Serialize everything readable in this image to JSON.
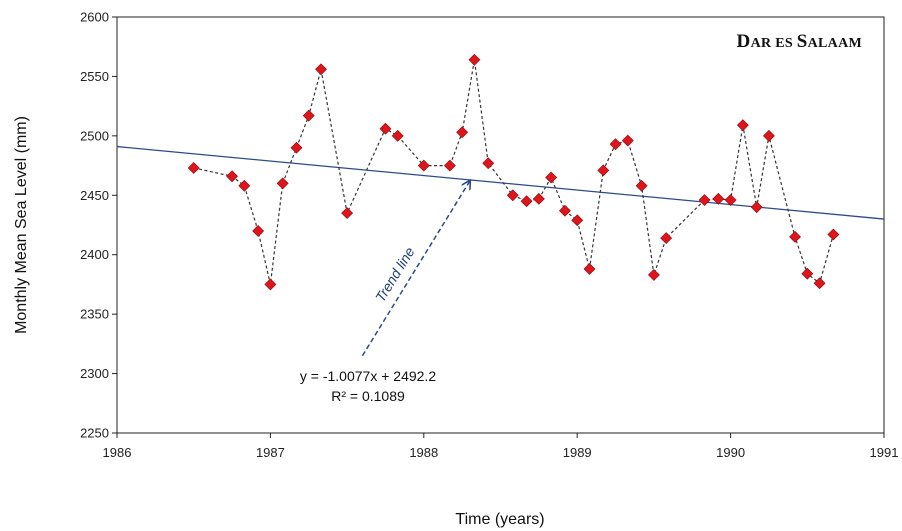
{
  "chart_data": {
    "type": "scatter",
    "title": "Dar es Salaam",
    "title_parts": {
      "first": "D",
      "second": "AR ES ",
      "third": "S",
      "fourth": "ALAAM"
    },
    "xlabel": "Time (years)",
    "ylabel": "Monthly Mean Sea Level (mm)",
    "xlim": [
      1986,
      1991
    ],
    "ylim": [
      2250,
      2600
    ],
    "x_ticks": [
      "1986",
      "1987",
      "1988",
      "1989",
      "1990",
      "1991"
    ],
    "y_ticks": [
      "2250",
      "2300",
      "2350",
      "2400",
      "2450",
      "2500",
      "2550",
      "2600"
    ],
    "grid": false,
    "marker_color": "#e0141b",
    "line_color": "#333333",
    "trend_color": "#2b4a8c",
    "series": [
      {
        "points": [
          {
            "x": 1986.5,
            "y": 2473
          },
          {
            "x": 1986.75,
            "y": 2466
          },
          {
            "x": 1986.83,
            "y": 2458
          },
          {
            "x": 1986.92,
            "y": 2420
          },
          {
            "x": 1987.0,
            "y": 2375
          },
          {
            "x": 1987.08,
            "y": 2460
          },
          {
            "x": 1987.17,
            "y": 2490
          },
          {
            "x": 1987.25,
            "y": 2517
          },
          {
            "x": 1987.33,
            "y": 2556
          },
          {
            "x": 1987.5,
            "y": 2435
          },
          {
            "x": 1987.75,
            "y": 2506
          },
          {
            "x": 1987.83,
            "y": 2500
          },
          {
            "x": 1988.0,
            "y": 2475
          },
          {
            "x": 1988.17,
            "y": 2475
          },
          {
            "x": 1988.25,
            "y": 2503
          },
          {
            "x": 1988.33,
            "y": 2564
          },
          {
            "x": 1988.42,
            "y": 2477
          },
          {
            "x": 1988.58,
            "y": 2450
          },
          {
            "x": 1988.67,
            "y": 2445
          },
          {
            "x": 1988.75,
            "y": 2447
          },
          {
            "x": 1988.83,
            "y": 2465
          },
          {
            "x": 1988.92,
            "y": 2437
          },
          {
            "x": 1989.0,
            "y": 2429
          },
          {
            "x": 1989.08,
            "y": 2388
          },
          {
            "x": 1989.17,
            "y": 2471
          },
          {
            "x": 1989.25,
            "y": 2493
          },
          {
            "x": 1989.33,
            "y": 2496
          },
          {
            "x": 1989.42,
            "y": 2458
          },
          {
            "x": 1989.5,
            "y": 2383
          },
          {
            "x": 1989.58,
            "y": 2414
          },
          {
            "x": 1989.83,
            "y": 2446
          },
          {
            "x": 1989.92,
            "y": 2447
          },
          {
            "x": 1990.0,
            "y": 2446
          },
          {
            "x": 1990.08,
            "y": 2509
          },
          {
            "x": 1990.17,
            "y": 2440
          },
          {
            "x": 1990.25,
            "y": 2500
          },
          {
            "x": 1990.42,
            "y": 2415
          },
          {
            "x": 1990.5,
            "y": 2384
          },
          {
            "x": 1990.58,
            "y": 2376
          },
          {
            "x": 1990.67,
            "y": 2417
          }
        ]
      }
    ],
    "trendline": {
      "start": {
        "x": 1986,
        "y": 2491
      },
      "end": {
        "x": 1991,
        "y": 2430
      },
      "equation": "y = -1.0077x + 2492.2",
      "r_squared": "R² = 0.1089",
      "annotation": "Trend line",
      "arrow_from": {
        "x": 1987.6,
        "y": 2315
      },
      "arrow_to": {
        "x": 1988.3,
        "y": 2462
      }
    }
  }
}
